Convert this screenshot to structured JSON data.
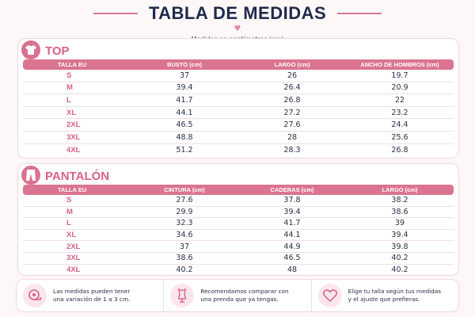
{
  "header": {
    "title": "TABLA DE MEDIDAS",
    "subtitle": "Medidas en centímetros (cm)"
  },
  "top": {
    "title": "TOP",
    "icon": "tshirt-icon",
    "columns": [
      "TALLA EU",
      "BUSTO (cm)",
      "LARGO (cm)",
      "ANCHO DE HOMBROS (cm)"
    ],
    "rows": [
      [
        "S",
        "37",
        "26",
        "19.7"
      ],
      [
        "M",
        "39.4",
        "26.4",
        "20.9"
      ],
      [
        "L",
        "41.7",
        "26.8",
        "22"
      ],
      [
        "XL",
        "44.1",
        "27.2",
        "23.2"
      ],
      [
        "2XL",
        "46.5",
        "27.6",
        "24.4"
      ],
      [
        "3XL",
        "48.8",
        "28",
        "25.6"
      ],
      [
        "4XL",
        "51.2",
        "28.3",
        "26.8"
      ]
    ]
  },
  "pantalon": {
    "title": "PANTALÓN",
    "icon": "pants-icon",
    "columns": [
      "TALLA EU",
      "CINTURA (cm)",
      "CADERAS (cm)",
      "LARGO (cm)"
    ],
    "rows": [
      [
        "S",
        "27.6",
        "37.8",
        "38.2"
      ],
      [
        "M",
        "29.9",
        "39.4",
        "38.6"
      ],
      [
        "L",
        "32.3",
        "41.7",
        "39"
      ],
      [
        "XL",
        "34.6",
        "44.1",
        "39.4"
      ],
      [
        "2XL",
        "37",
        "44.9",
        "39.8"
      ],
      [
        "3XL",
        "38.6",
        "46.5",
        "40.2"
      ],
      [
        "4XL",
        "40.2",
        "48",
        "40.2"
      ]
    ]
  },
  "tips": [
    {
      "icon": "measuring-tape-icon",
      "line1": "Las medidas pueden tener",
      "line2": "una variación de 1 a 3 cm."
    },
    {
      "icon": "dress-form-icon",
      "line1": "Recomendamos comparar con",
      "line2": "una prenda que ya tengas."
    },
    {
      "icon": "heart-icon",
      "line1": "Elige tu talla según tus medidas",
      "line2": "y el ajuste que prefieras."
    }
  ],
  "colors": {
    "accent": "#db7491",
    "title": "#1f2a4a",
    "size_label": "#d8608a"
  }
}
